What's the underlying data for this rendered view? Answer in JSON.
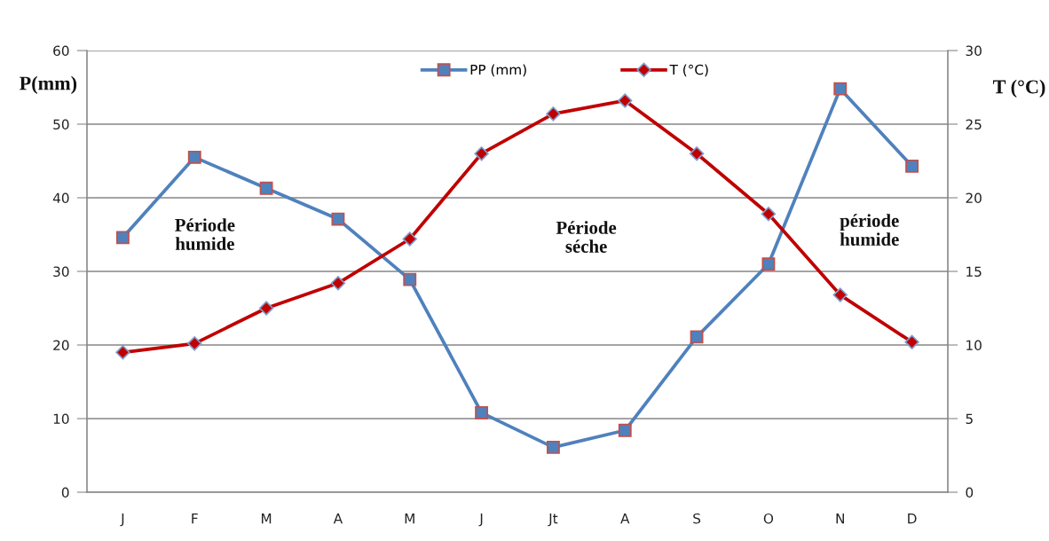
{
  "chart_data": {
    "type": "line",
    "categories": [
      "J",
      "F",
      "M",
      "A",
      "M",
      "J",
      "Jt",
      "A",
      "S",
      "O",
      "N",
      "D"
    ],
    "ylabel": "P(mm)",
    "y2label": "T (°C)",
    "ylim": [
      0,
      60
    ],
    "yticks": [
      0,
      10,
      20,
      30,
      40,
      50,
      60
    ],
    "y2lim": [
      0,
      30
    ],
    "y2ticks": [
      0,
      5,
      10,
      15,
      20,
      25,
      30
    ],
    "series": [
      {
        "name": "PP (mm)",
        "color": "#4f81bd",
        "marker": "square",
        "values": [
          34.6,
          45.5,
          41.3,
          37.1,
          28.9,
          10.8,
          6.1,
          8.4,
          21.1,
          31.0,
          54.8,
          44.3
        ]
      },
      {
        "name": "T (°C)",
        "color": "#c00000",
        "marker": "diamond",
        "axis": "y2",
        "values": [
          9.5,
          10.1,
          12.5,
          14.2,
          17.2,
          23.0,
          25.7,
          26.6,
          23.0,
          18.9,
          13.4,
          10.2
        ]
      }
    ],
    "annotations": [
      "Période\nhumide",
      "Période\nséche",
      "période\nhumide"
    ],
    "grid": "y",
    "legend": "top"
  }
}
